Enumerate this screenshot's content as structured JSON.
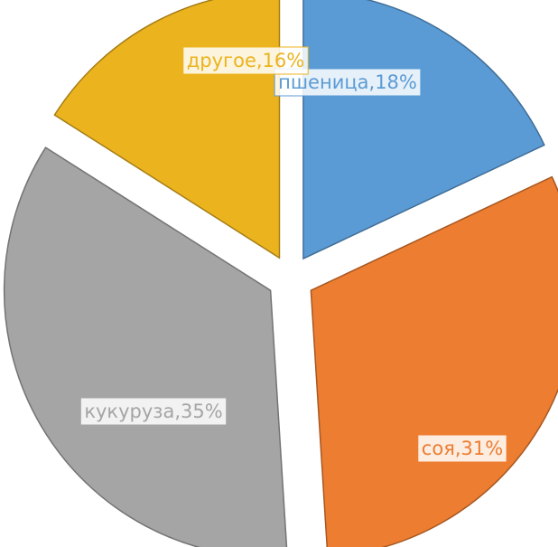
{
  "chart_data": {
    "type": "pie",
    "values": [
      18,
      31,
      35,
      16
    ],
    "value_labels": [
      "пшеница,18%",
      "соя,31%",
      "кукуруза,35%",
      "другое,16%"
    ],
    "colors": [
      "#5b9bd5",
      "#ed7d31",
      "#a5a5a5",
      "#ebb31e"
    ]
  }
}
